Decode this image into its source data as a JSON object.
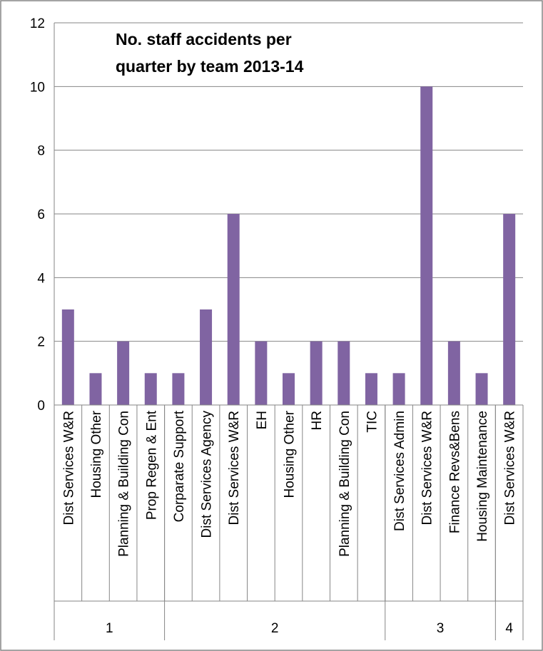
{
  "chart_data": {
    "type": "bar",
    "title_lines": [
      "No.  staff accidents per",
      "quarter by team 2013-14"
    ],
    "xlabel": "",
    "ylabel": "",
    "ylim": [
      0,
      12
    ],
    "yticks": [
      0,
      2,
      4,
      6,
      8,
      10,
      12
    ],
    "grid": true,
    "legend": "none",
    "bar_color": "#8064A2",
    "categories": [
      "Dist Services W&R",
      "Housing Other",
      "Planning & Building Con",
      "Prop Regen & Ent",
      "Corparate Support",
      "Dist Services Agency",
      "Dist Services W&R",
      "EH",
      "Housing Other",
      "HR",
      "Planning & Building Con",
      "TIC",
      "Dist Services Admin",
      "Dist Services W&R",
      "Finance Revs&Bens",
      "Housing Maintenance",
      "Dist Services W&R"
    ],
    "values": [
      3,
      1,
      2,
      1,
      1,
      3,
      6,
      2,
      1,
      2,
      2,
      1,
      1,
      10,
      2,
      1,
      6
    ],
    "groups": [
      {
        "label": "1",
        "start": 0,
        "count": 4
      },
      {
        "label": "2",
        "start": 4,
        "count": 8
      },
      {
        "label": "3",
        "start": 12,
        "count": 4
      },
      {
        "label": "4",
        "start": 16,
        "count": 1
      }
    ]
  }
}
